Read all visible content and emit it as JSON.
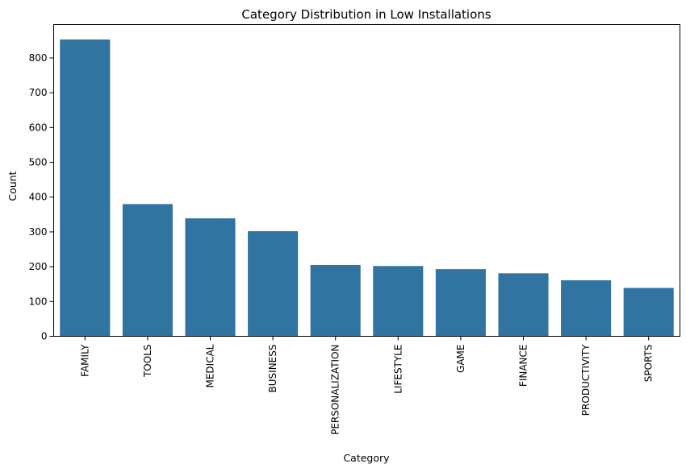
{
  "chart_data": {
    "type": "bar",
    "title": "Category Distribution in Low Installations",
    "xlabel": "Category",
    "ylabel": "Count",
    "categories": [
      "FAMILY",
      "TOOLS",
      "MEDICAL",
      "BUSINESS",
      "PERSONALIZATION",
      "LIFESTYLE",
      "GAME",
      "FINANCE",
      "PRODUCTIVITY",
      "SPORTS"
    ],
    "values": [
      853,
      380,
      339,
      302,
      205,
      202,
      193,
      181,
      161,
      139
    ],
    "ylim": [
      0,
      896
    ],
    "yticks": [
      0,
      100,
      200,
      300,
      400,
      500,
      600,
      700,
      800
    ],
    "bar_color": "#3274a1",
    "grid": false,
    "legend": "none"
  }
}
